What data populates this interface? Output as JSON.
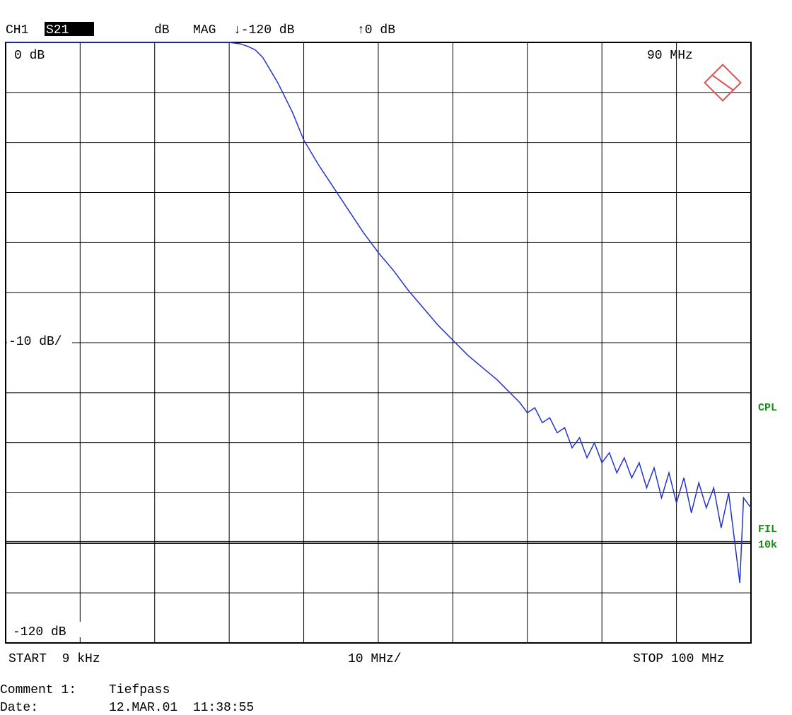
{
  "chart_data": {
    "type": "line",
    "header": {
      "channel": "CH1",
      "parameter": "S21",
      "unit": "dB",
      "format": "MAG",
      "bottom": "↓-120 dB",
      "top": "↑0 dB"
    },
    "annotations": {
      "top_left": "0 dB",
      "top_right": "90 MHz",
      "scale": "-10 dB/",
      "bottom_left": "-120 dB",
      "right_1": "CPL",
      "right_2": "FIL",
      "right_3": "10k"
    },
    "footer": {
      "start": "START  9 kHz",
      "span": "10 MHz/",
      "stop": "STOP 100 MHz",
      "comment_label": "Comment 1:",
      "comment": "Tiefpass",
      "date_label": "Date:",
      "date": "12.MAR.01  11:38:55"
    },
    "x": [
      0.009,
      5,
      10,
      20,
      30,
      31.5,
      32.5,
      33.5,
      34.5,
      35.5,
      36.5,
      37.5,
      38.5,
      40,
      42,
      44,
      46,
      48,
      50,
      52,
      54,
      56,
      58,
      60,
      62,
      64,
      66,
      67,
      68,
      69,
      70,
      71,
      72,
      73,
      74,
      75,
      76,
      77,
      78,
      79,
      80,
      81,
      82,
      83,
      84,
      85,
      86,
      87,
      88,
      89,
      90,
      91,
      92,
      93,
      94,
      95,
      96,
      97,
      98,
      98.5,
      99,
      100
    ],
    "series": [
      {
        "color": "#2233cc",
        "values": [
          0,
          0,
          0,
          0,
          0,
          -0.3,
          -0.8,
          -1.5,
          -3,
          -5.5,
          -8,
          -11,
          -14,
          -19.5,
          -24.5,
          -29,
          -33.5,
          -38,
          -42,
          -45.5,
          -49.5,
          -53,
          -56.5,
          -59.5,
          -62.5,
          -65,
          -67.5,
          -69,
          -70.5,
          -72,
          -74,
          -73,
          -76,
          -75,
          -78,
          -77,
          -81,
          -79,
          -83,
          -80,
          -84,
          -82,
          -86,
          -83,
          -87,
          -84,
          -89,
          -85,
          -91,
          -86,
          -92,
          -87,
          -94,
          -88,
          -93,
          -89,
          -97,
          -90,
          -102,
          -108,
          -91,
          -93
        ]
      }
    ],
    "xlim": [
      0.009,
      100
    ],
    "ylim": [
      -120,
      0
    ],
    "xticks": [
      10,
      20,
      30,
      40,
      50,
      60,
      70,
      80,
      90
    ],
    "yticks": [
      -110,
      -100,
      -90,
      -80,
      -70,
      -60,
      -50,
      -40,
      -30,
      -20,
      -10
    ],
    "ref_line": -100,
    "grid": true
  }
}
